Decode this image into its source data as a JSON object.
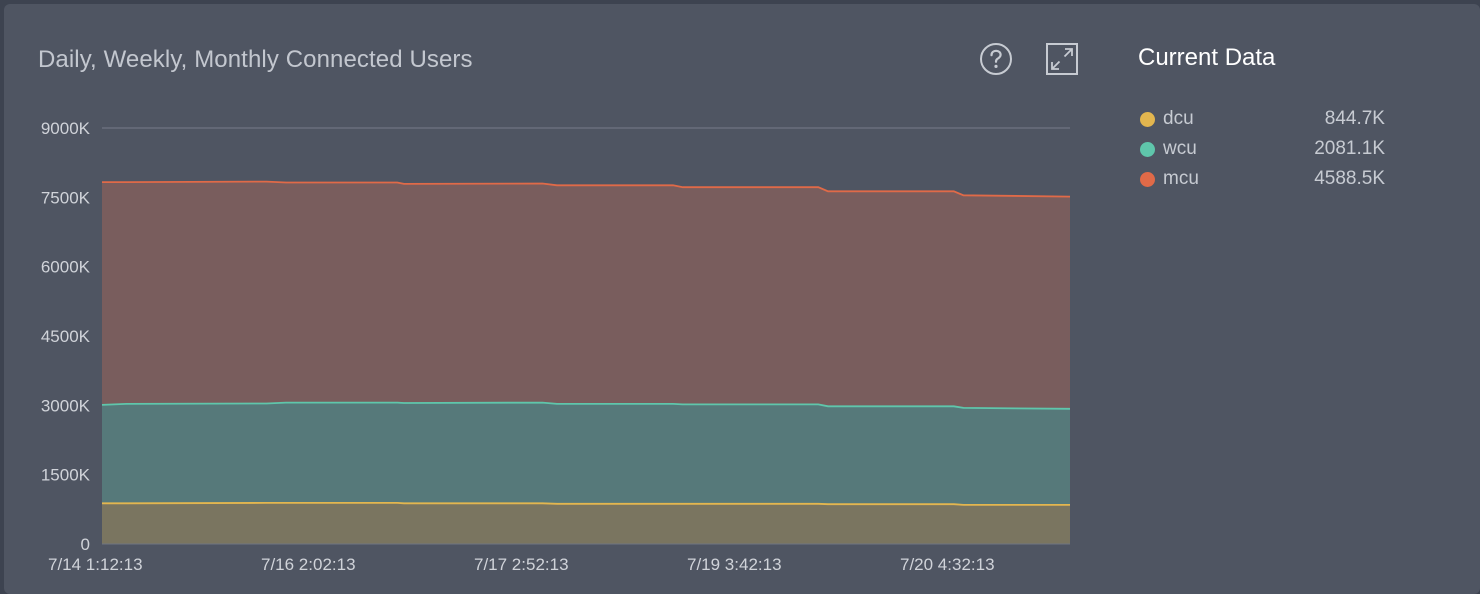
{
  "panel": {
    "title": "Daily, Weekly, Monthly Connected Users",
    "help_icon": "question-circle-icon",
    "expand_icon": "expand-arrows-icon"
  },
  "legend": {
    "title": "Current Data",
    "items": [
      {
        "name": "dcu",
        "value": "844.7K",
        "color": "#e3b64f"
      },
      {
        "name": "wcu",
        "value": "2081.1K",
        "color": "#5fc6ab"
      },
      {
        "name": "mcu",
        "value": "4588.5K",
        "color": "#e06a48"
      }
    ]
  },
  "chart_data": {
    "type": "area",
    "stacked": true,
    "grid": true,
    "x_tick_labels": [
      "7/14 1:12:13",
      "7/16 2:02:13",
      "7/17 2:52:13",
      "7/19 3:42:13",
      "7/20 4:32:13"
    ],
    "y_tick_labels": [
      "0",
      "1500K",
      "3000K",
      "4500K",
      "6000K",
      "7500K",
      "9000K"
    ],
    "y_tick_values": [
      0,
      1500,
      3000,
      4500,
      6000,
      7500,
      9000
    ],
    "ylim": [
      0,
      9000
    ],
    "y_unit": "K",
    "x": [
      "7/14 1:12",
      "7/14 6:00",
      "7/15 12:00",
      "7/15 18:00",
      "7/16 12:00",
      "7/16 18:00",
      "7/17 12:00",
      "7/17 18:00",
      "7/18 18:00",
      "7/19 0:00",
      "7/19 18:00",
      "7/20 0:00",
      "7/20 18:00",
      "7/21 0:00",
      "7/21 12:00"
    ],
    "series": [
      {
        "name": "dcu",
        "color": "#e3b64f",
        "values": [
          880,
          880,
          890,
          890,
          890,
          880,
          880,
          870,
          870,
          870,
          870,
          860,
          860,
          845,
          845
        ]
      },
      {
        "name": "wcu",
        "color": "#5fc6ab",
        "values": [
          2130,
          2150,
          2150,
          2170,
          2170,
          2170,
          2180,
          2160,
          2160,
          2150,
          2150,
          2120,
          2120,
          2100,
          2081
        ]
      },
      {
        "name": "mcu",
        "color": "#e06a48",
        "values": [
          4820,
          4800,
          4800,
          4760,
          4760,
          4740,
          4740,
          4730,
          4730,
          4700,
          4700,
          4650,
          4650,
          4600,
          4590
        ]
      }
    ]
  }
}
